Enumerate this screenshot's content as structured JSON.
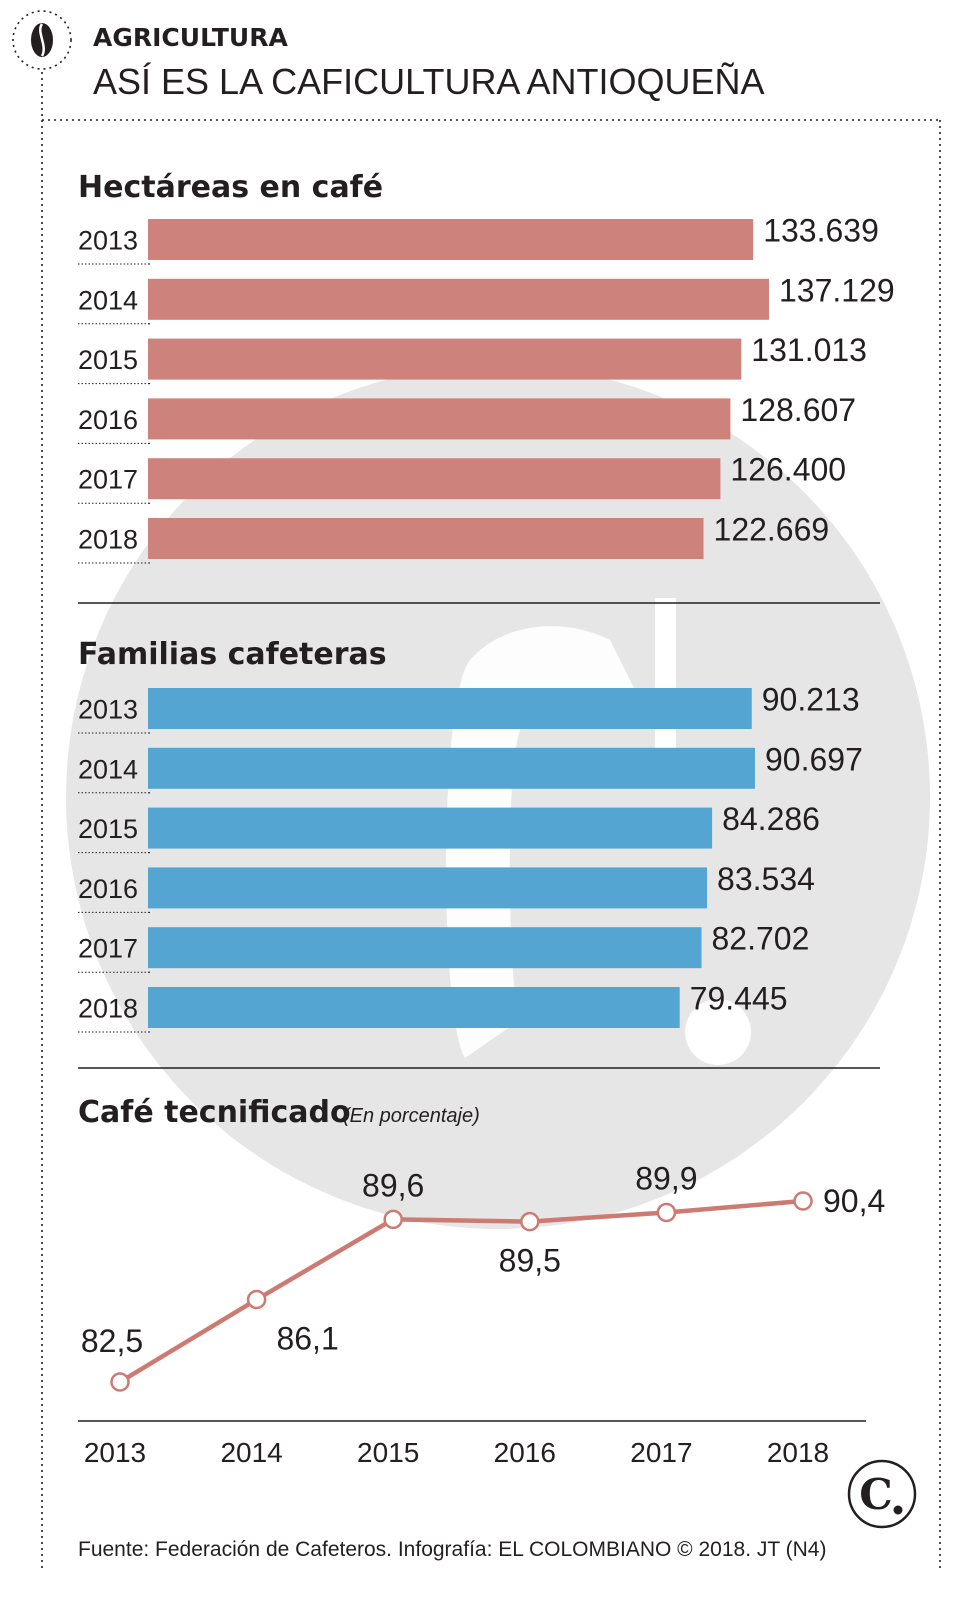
{
  "header": {
    "kicker": "AGRICULTURA",
    "headline": "ASÍ ES LA CAFICULTURA ANTIOQUEÑA",
    "icon": "coffee-bean-icon"
  },
  "colors": {
    "hectares_bar": "#cd837c",
    "families_bar": "#55a5d3",
    "line": "#cd7a72",
    "watermark": "#e6e6e6"
  },
  "chart_data": [
    {
      "type": "bar",
      "orientation": "horizontal",
      "title": "Hectáreas en café",
      "categories": [
        "2013",
        "2014",
        "2015",
        "2016",
        "2017",
        "2018"
      ],
      "values": [
        133639,
        137129,
        131013,
        128607,
        126400,
        122669
      ],
      "value_labels": [
        "133.639",
        "137.129",
        "131.013",
        "128.607",
        "126.400",
        "122.669"
      ],
      "xlim": [
        0,
        137129
      ]
    },
    {
      "type": "bar",
      "orientation": "horizontal",
      "title": "Familias cafeteras",
      "categories": [
        "2013",
        "2014",
        "2015",
        "2016",
        "2017",
        "2018"
      ],
      "values": [
        90213,
        90697,
        84286,
        83534,
        82702,
        79445
      ],
      "value_labels": [
        "90.213",
        "90.697",
        "84.286",
        "83.534",
        "82.702",
        "79.445"
      ],
      "xlim": [
        0,
        90697
      ]
    },
    {
      "type": "line",
      "title": "Café tecnificado",
      "subtitle": "(En porcentaje)",
      "x": [
        "2013",
        "2014",
        "2015",
        "2016",
        "2017",
        "2018"
      ],
      "values": [
        82.5,
        86.1,
        89.6,
        89.5,
        89.9,
        90.4
      ],
      "value_labels": [
        "82,5",
        "86,1",
        "89,6",
        "89,5",
        "89,9",
        "90,4"
      ],
      "ylim": [
        82.5,
        90.4
      ]
    }
  ],
  "footer": {
    "source": "Fuente: Federación de Cafeteros. Infografía: EL COLOMBIANO © 2018. JT (N4)",
    "logo_letter": "C",
    "logo_icon": "el-colombiano-logo-icon"
  }
}
